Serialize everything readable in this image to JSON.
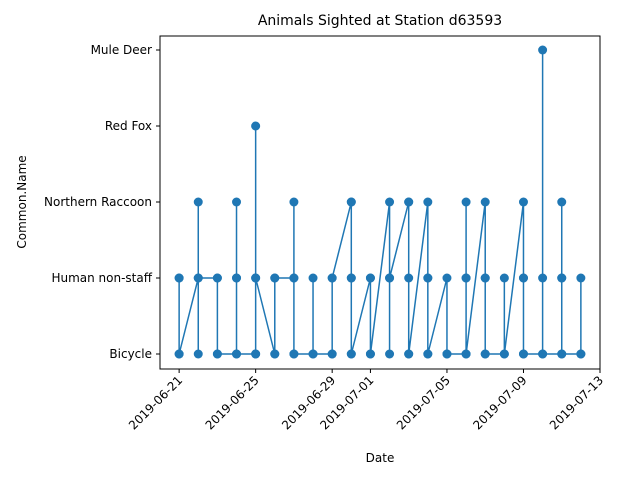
{
  "chart_data": {
    "type": "line",
    "title": "Animals Sighted at Station d63593",
    "xlabel": "Date",
    "ylabel": "Common.Name",
    "categories": [
      "Bicycle",
      "Human non-staff",
      "Northern Raccoon",
      "Red Fox",
      "Mule Deer"
    ],
    "x_ticks": [
      "2019-06-21",
      "2019-06-25",
      "2019-06-29",
      "2019-07-01",
      "2019-07-05",
      "2019-07-09",
      "2019-07-13"
    ],
    "xlim": [
      "2019-06-20",
      "2019-07-13"
    ],
    "grid": false,
    "legend": "none",
    "series": [
      {
        "color": "#1f77b4",
        "points": [
          {
            "x": "2019-06-21",
            "y": "Human non-staff"
          },
          {
            "x": "2019-06-21",
            "y": "Bicycle"
          },
          {
            "x": "2019-06-21",
            "y": "Human non-staff"
          },
          {
            "x": "2019-06-21",
            "y": "Bicycle"
          },
          {
            "x": "2019-06-22",
            "y": "Human non-staff"
          },
          {
            "x": "2019-06-22",
            "y": "Northern Raccoon"
          },
          {
            "x": "2019-06-22",
            "y": "Bicycle"
          },
          {
            "x": "2019-06-22",
            "y": "Human non-staff"
          },
          {
            "x": "2019-06-23",
            "y": "Human non-staff"
          },
          {
            "x": "2019-06-23",
            "y": "Bicycle"
          },
          {
            "x": "2019-06-23",
            "y": "Human non-staff"
          },
          {
            "x": "2019-06-23",
            "y": "Bicycle"
          },
          {
            "x": "2019-06-24",
            "y": "Bicycle"
          },
          {
            "x": "2019-06-24",
            "y": "Human non-staff"
          },
          {
            "x": "2019-06-24",
            "y": "Northern Raccoon"
          },
          {
            "x": "2019-06-24",
            "y": "Human non-staff"
          },
          {
            "x": "2019-06-24",
            "y": "Bicycle"
          },
          {
            "x": "2019-06-25",
            "y": "Bicycle"
          },
          {
            "x": "2019-06-25",
            "y": "Human non-staff"
          },
          {
            "x": "2019-06-25",
            "y": "Red Fox"
          },
          {
            "x": "2019-06-25",
            "y": "Bicycle"
          },
          {
            "x": "2019-06-25",
            "y": "Human non-staff"
          },
          {
            "x": "2019-06-26",
            "y": "Bicycle"
          },
          {
            "x": "2019-06-26",
            "y": "Human non-staff"
          },
          {
            "x": "2019-06-26",
            "y": "Bicycle"
          },
          {
            "x": "2019-06-26",
            "y": "Human non-staff"
          },
          {
            "x": "2019-06-27",
            "y": "Human non-staff"
          },
          {
            "x": "2019-06-27",
            "y": "Northern Raccoon"
          },
          {
            "x": "2019-06-27",
            "y": "Bicycle"
          },
          {
            "x": "2019-06-27",
            "y": "Human non-staff"
          },
          {
            "x": "2019-06-27",
            "y": "Bicycle"
          },
          {
            "x": "2019-06-28",
            "y": "Bicycle"
          },
          {
            "x": "2019-06-28",
            "y": "Human non-staff"
          },
          {
            "x": "2019-06-28",
            "y": "Bicycle"
          },
          {
            "x": "2019-06-29",
            "y": "Bicycle"
          },
          {
            "x": "2019-06-29",
            "y": "Human non-staff"
          },
          {
            "x": "2019-06-29",
            "y": "Bicycle"
          },
          {
            "x": "2019-06-29",
            "y": "Human non-staff"
          },
          {
            "x": "2019-06-30",
            "y": "Northern Raccoon"
          },
          {
            "x": "2019-06-30",
            "y": "Human non-staff"
          },
          {
            "x": "2019-06-30",
            "y": "Bicycle"
          },
          {
            "x": "2019-06-30",
            "y": "Northern Raccoon"
          },
          {
            "x": "2019-06-30",
            "y": "Human non-staff"
          },
          {
            "x": "2019-06-30",
            "y": "Bicycle"
          },
          {
            "x": "2019-07-01",
            "y": "Human non-staff"
          },
          {
            "x": "2019-07-01",
            "y": "Bicycle"
          },
          {
            "x": "2019-07-01",
            "y": "Human non-staff"
          },
          {
            "x": "2019-07-01",
            "y": "Bicycle"
          },
          {
            "x": "2019-07-02",
            "y": "Northern Raccoon"
          },
          {
            "x": "2019-07-02",
            "y": "Human non-staff"
          },
          {
            "x": "2019-07-02",
            "y": "Bicycle"
          },
          {
            "x": "2019-07-02",
            "y": "Human non-staff"
          },
          {
            "x": "2019-07-03",
            "y": "Northern Raccoon"
          },
          {
            "x": "2019-07-03",
            "y": "Human non-staff"
          },
          {
            "x": "2019-07-03",
            "y": "Bicycle"
          },
          {
            "x": "2019-07-03",
            "y": "Northern Raccoon"
          },
          {
            "x": "2019-07-03",
            "y": "Bicycle"
          },
          {
            "x": "2019-07-04",
            "y": "Northern Raccoon"
          },
          {
            "x": "2019-07-04",
            "y": "Human non-staff"
          },
          {
            "x": "2019-07-04",
            "y": "Bicycle"
          },
          {
            "x": "2019-07-04",
            "y": "Human non-staff"
          },
          {
            "x": "2019-07-04",
            "y": "Bicycle"
          },
          {
            "x": "2019-07-05",
            "y": "Human non-staff"
          },
          {
            "x": "2019-07-05",
            "y": "Bicycle"
          },
          {
            "x": "2019-07-05",
            "y": "Bicycle"
          },
          {
            "x": "2019-07-06",
            "y": "Bicycle"
          },
          {
            "x": "2019-07-06",
            "y": "Human non-staff"
          },
          {
            "x": "2019-07-06",
            "y": "Northern Raccoon"
          },
          {
            "x": "2019-07-06",
            "y": "Human non-staff"
          },
          {
            "x": "2019-07-06",
            "y": "Bicycle"
          },
          {
            "x": "2019-07-07",
            "y": "Northern Raccoon"
          },
          {
            "x": "2019-07-07",
            "y": "Human non-staff"
          },
          {
            "x": "2019-07-07",
            "y": "Bicycle"
          },
          {
            "x": "2019-07-07",
            "y": "Human non-staff"
          },
          {
            "x": "2019-07-07",
            "y": "Bicycle"
          },
          {
            "x": "2019-07-08",
            "y": "Bicycle"
          },
          {
            "x": "2019-07-08",
            "y": "Human non-staff"
          },
          {
            "x": "2019-07-08",
            "y": "Bicycle"
          },
          {
            "x": "2019-07-09",
            "y": "Northern Raccoon"
          },
          {
            "x": "2019-07-09",
            "y": "Human non-staff"
          },
          {
            "x": "2019-07-09",
            "y": "Bicycle"
          },
          {
            "x": "2019-07-09",
            "y": "Human non-staff"
          },
          {
            "x": "2019-07-09",
            "y": "Bicycle"
          },
          {
            "x": "2019-07-10",
            "y": "Bicycle"
          },
          {
            "x": "2019-07-10",
            "y": "Mule Deer"
          },
          {
            "x": "2019-07-10",
            "y": "Human non-staff"
          },
          {
            "x": "2019-07-10",
            "y": "Bicycle"
          },
          {
            "x": "2019-07-11",
            "y": "Bicycle"
          },
          {
            "x": "2019-07-11",
            "y": "Human non-staff"
          },
          {
            "x": "2019-07-11",
            "y": "Northern Raccoon"
          },
          {
            "x": "2019-07-11",
            "y": "Human non-staff"
          },
          {
            "x": "2019-07-11",
            "y": "Bicycle"
          },
          {
            "x": "2019-07-12",
            "y": "Bicycle"
          },
          {
            "x": "2019-07-12",
            "y": "Human non-staff"
          },
          {
            "x": "2019-07-12",
            "y": "Bicycle"
          }
        ]
      }
    ]
  }
}
